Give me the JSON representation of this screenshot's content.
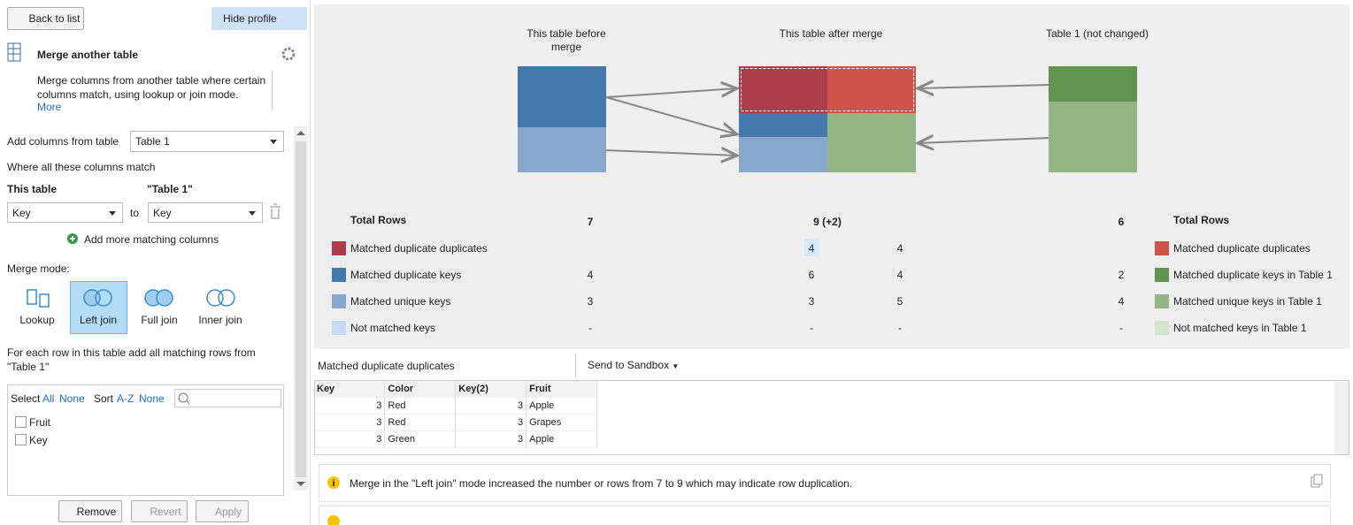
{
  "left_panel": {
    "back_button": "Back to list",
    "hide_button": "Hide profile",
    "widget": {
      "title": "Merge another table",
      "description": "Merge columns from another table where certain columns match, using lookup or join mode.",
      "more_link": "More"
    },
    "form": {
      "add_columns_label": "Add columns from table",
      "table_select": "Table 1",
      "match_label": "Where all these columns match",
      "this_table_header": "This table",
      "other_table_header": "\"Table 1\"",
      "left_key": "Key",
      "to_label": "to",
      "right_key": "Key",
      "add_matching": "Add more matching columns",
      "merge_mode_label": "Merge mode:",
      "modes": [
        "Lookup",
        "Left join",
        "Full join",
        "Inner join"
      ],
      "mode_description": "For each row in this table add all matching rows from \"Table 1\""
    },
    "column_list": {
      "select_label": "Select",
      "all": "All",
      "none": "None",
      "sort_label": "Sort",
      "az": "A-Z",
      "sort_none": "None",
      "items": [
        "Fruit",
        "Key"
      ]
    },
    "buttons": [
      "Remove",
      "Revert",
      "Apply"
    ]
  },
  "diagram": {
    "headers": [
      "This table before merge",
      "This table after merge",
      "Table 1 (not changed)"
    ],
    "total_label_left": "Total Rows",
    "totals": [
      "7",
      "9 (+2)",
      "6"
    ],
    "total_label_right": "Total Rows",
    "rows": [
      {
        "label": "Matched duplicate duplicates",
        "after": 4,
        "after_other": 4,
        "table1_label": "Matched duplicate duplicates"
      },
      {
        "label": "Matched duplicate keys",
        "before": 4,
        "after": 6,
        "after_other": 4,
        "table1": 2,
        "table1_label": "Matched duplicate keys in Table 1"
      },
      {
        "label": "Matched unique keys",
        "before": 3,
        "after": 3,
        "after_other": 5,
        "table1": 4,
        "table1_label": "Matched unique keys in Table 1"
      },
      {
        "label": "Not matched keys",
        "before": "-",
        "after": "-",
        "after_other": "-",
        "table1": "-",
        "table1_label": "Not matched keys in Table 1"
      }
    ]
  },
  "preview": {
    "selection_label": "Matched duplicate duplicates",
    "sandbox_button": "Send to Sandbox",
    "columns": [
      "Key",
      "Color",
      "Key(2)",
      "Fruit"
    ],
    "rows": [
      [
        3,
        "Red",
        3,
        "Apple"
      ],
      [
        3,
        "Red",
        3,
        "Grapes"
      ],
      [
        3,
        "Green",
        3,
        "Apple"
      ]
    ]
  },
  "warnings": [
    "Merge in the \"Left join\" mode increased the number or rows from 7 to 9 which may indicate row duplication."
  ]
}
